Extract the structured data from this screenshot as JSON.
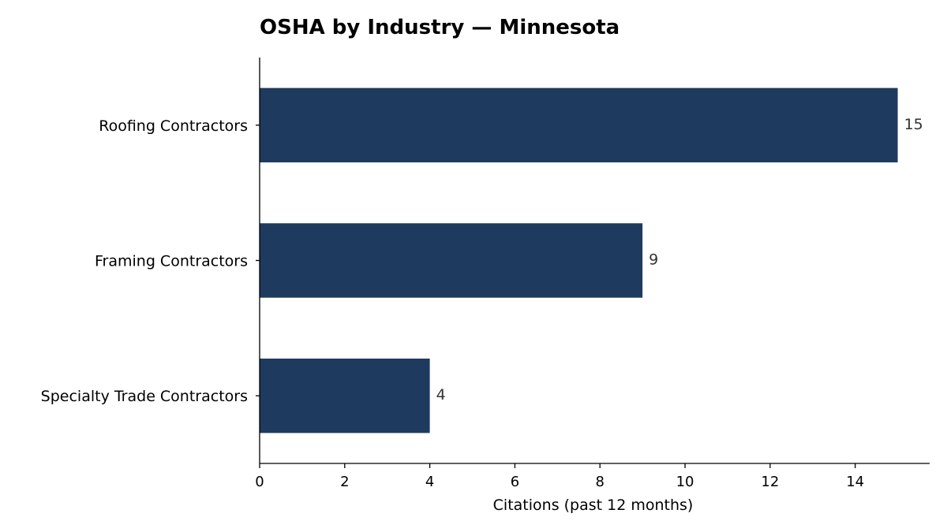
{
  "chart_data": {
    "type": "bar",
    "orientation": "horizontal",
    "title": "OSHA by Industry — Minnesota",
    "xlabel": "Citations (past 12 months)",
    "ylabel": "",
    "categories": [
      "Roofing Contractors",
      "Framing Contractors",
      "Specialty Trade Contractors"
    ],
    "values": [
      15,
      9,
      4
    ],
    "data_labels": [
      "15",
      "9",
      "4"
    ],
    "xlim": [
      0,
      15.75
    ],
    "xticks": [
      0,
      2,
      4,
      6,
      8,
      10,
      12,
      14
    ],
    "grid": false,
    "legend": "none",
    "bar_color": "#1f3a5f"
  }
}
